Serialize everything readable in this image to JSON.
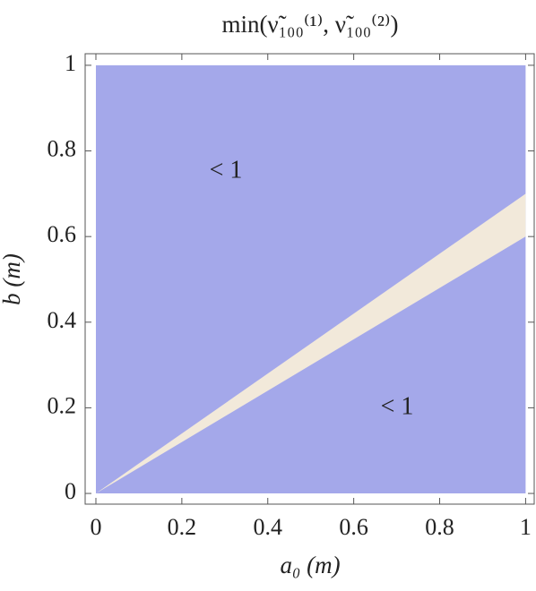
{
  "chart_data": {
    "type": "region",
    "title": "min(ν̃₁₀₀⁽¹⁾, ν̃₁₀₀⁽²⁾)",
    "x_label": "a₀ (m)",
    "y_label": "b (m)",
    "xlim": [
      -0.025,
      1.02
    ],
    "ylim": [
      -0.025,
      1.027
    ],
    "xticks": [
      0,
      0.2,
      0.4,
      0.6,
      0.8,
      1
    ],
    "yticks": [
      0,
      0.2,
      0.4,
      0.6,
      0.8,
      1
    ],
    "regions": [
      {
        "color": "#a4a8ea",
        "x": [
          0,
          1,
          1,
          0
        ],
        "y": [
          0,
          0,
          1,
          1
        ]
      },
      {
        "color": "#f2e9da",
        "x": [
          0,
          1,
          1
        ],
        "y": [
          0,
          0.7,
          0.6
        ]
      }
    ],
    "annotations": [
      "< 1",
      "< 1"
    ]
  }
}
